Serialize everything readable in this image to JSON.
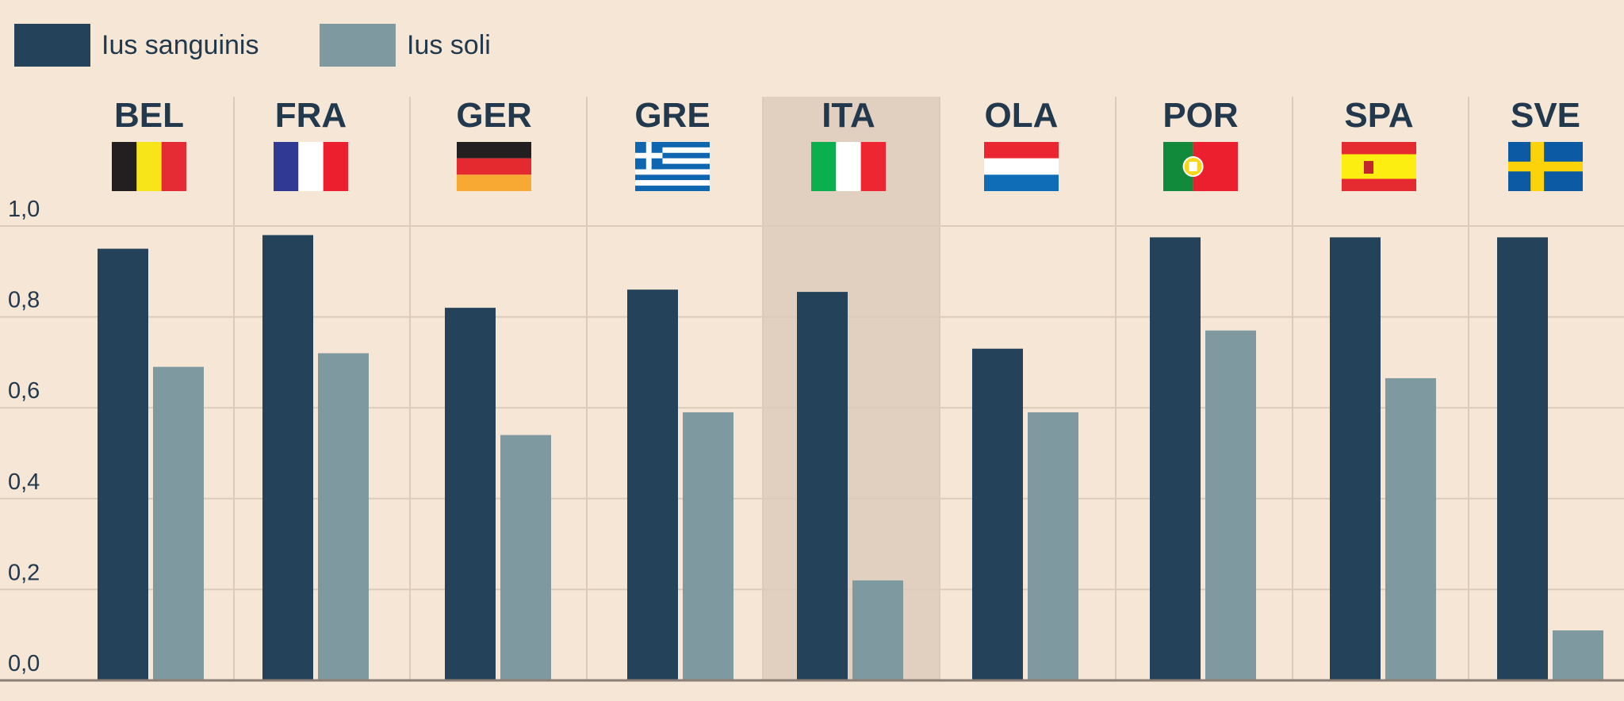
{
  "chart_data": {
    "type": "bar",
    "categories": [
      "BEL",
      "FRA",
      "GER",
      "GRE",
      "ITA",
      "OLA",
      "POR",
      "SPA",
      "SVE"
    ],
    "series": [
      {
        "name": "Ius sanguinis",
        "values": [
          0.95,
          0.98,
          0.82,
          0.86,
          0.855,
          0.73,
          0.975,
          0.975,
          0.975
        ]
      },
      {
        "name": "Ius soli",
        "values": [
          0.69,
          0.72,
          0.54,
          0.59,
          0.22,
          0.59,
          0.77,
          0.665,
          0.11
        ]
      }
    ],
    "highlighted_category": "ITA",
    "y_ticks": [
      "1,0",
      "0,8",
      "0,6",
      "0,4",
      "0,2",
      "0,0"
    ],
    "ylim": [
      0,
      1.0
    ],
    "grid": true,
    "legend_position": "top-left",
    "title": "",
    "xlabel": "",
    "ylabel": ""
  },
  "colors": {
    "ius_sanguinis": "#24425a",
    "ius_soli": "#7f99a1",
    "background": "#f5e6d6",
    "highlight": "#e1cfbf",
    "grid": "#dccbb9",
    "axis": "#8c7f75",
    "text": "#22394d"
  },
  "flags": {
    "BEL": "belgium-flag-icon",
    "FRA": "france-flag-icon",
    "GER": "germany-flag-icon",
    "GRE": "greece-flag-icon",
    "ITA": "italy-flag-icon",
    "OLA": "netherlands-flag-icon",
    "POR": "portugal-flag-icon",
    "SPA": "spain-flag-icon",
    "SVE": "sweden-flag-icon"
  }
}
